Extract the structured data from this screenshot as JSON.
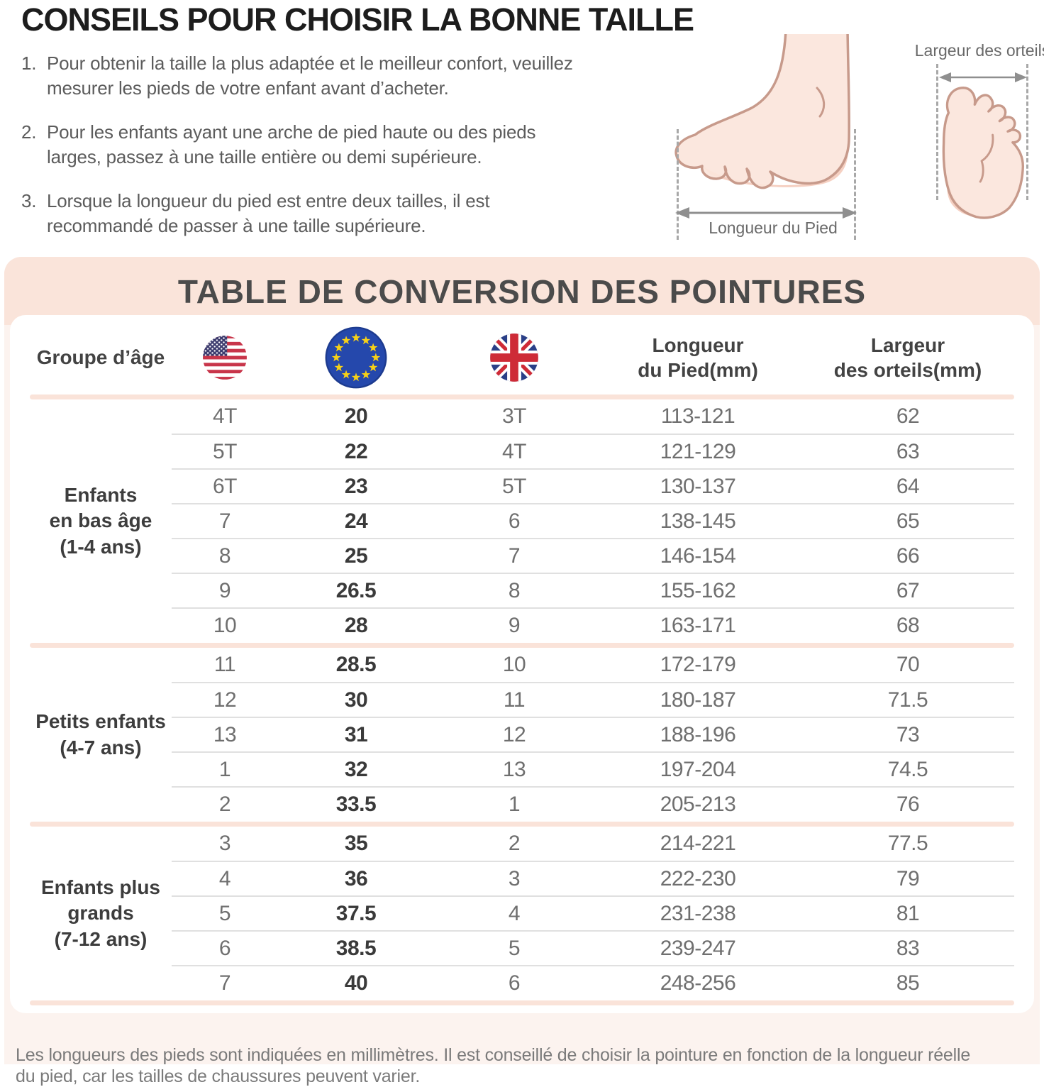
{
  "header": {
    "title": "CONSEILS POUR CHOISIR LA BONNE TAILLE",
    "tip_numbers": [
      "1.",
      "2.",
      "3."
    ],
    "tips": [
      "Pour obtenir la taille la plus adaptée et le meilleur confort, veuillez\nmesurer les pieds de votre enfant avant d’acheter.",
      "Pour les enfants ayant une arche de pied haute ou des pieds\nlarges, passez à une taille entière ou demi supérieure.",
      "Lorsque la longueur du pied est entre deux tailles, il est\nrecommandé de passer à une taille supérieure."
    ]
  },
  "diagram": {
    "foot_length_label": "Longueur du Pied",
    "toe_width_label": "Largeur des orteils"
  },
  "table": {
    "title": "TABLE DE CONVERSION DES POINTURES",
    "age_group_header": "Groupe d’âge",
    "flag_icons": [
      "us-flag",
      "eu-flag",
      "uk-flag"
    ],
    "foot_length_header": "Longueur\ndu Pied(mm)",
    "toe_width_header": "Largeur\ndes orteils(mm)",
    "groups": [
      {
        "label": "Enfants\nen bas âge\n(1-4 ans)",
        "rows": [
          {
            "us": "4T",
            "eu": "20",
            "uk": "3T",
            "length": "113-121",
            "width": "62"
          },
          {
            "us": "5T",
            "eu": "22",
            "uk": "4T",
            "length": "121-129",
            "width": "63"
          },
          {
            "us": "6T",
            "eu": "23",
            "uk": "5T",
            "length": "130-137",
            "width": "64"
          },
          {
            "us": "7",
            "eu": "24",
            "uk": "6",
            "length": "138-145",
            "width": "65"
          },
          {
            "us": "8",
            "eu": "25",
            "uk": "7",
            "length": "146-154",
            "width": "66"
          },
          {
            "us": "9",
            "eu": "26.5",
            "uk": "8",
            "length": "155-162",
            "width": "67"
          },
          {
            "us": "10",
            "eu": "28",
            "uk": "9",
            "length": "163-171",
            "width": "68"
          }
        ]
      },
      {
        "label": "Petits enfants\n(4-7 ans)",
        "rows": [
          {
            "us": "11",
            "eu": "28.5",
            "uk": "10",
            "length": "172-179",
            "width": "70"
          },
          {
            "us": "12",
            "eu": "30",
            "uk": "11",
            "length": "180-187",
            "width": "71.5"
          },
          {
            "us": "13",
            "eu": "31",
            "uk": "12",
            "length": "188-196",
            "width": "73"
          },
          {
            "us": "1",
            "eu": "32",
            "uk": "13",
            "length": "197-204",
            "width": "74.5"
          },
          {
            "us": "2",
            "eu": "33.5",
            "uk": "1",
            "length": "205-213",
            "width": "76"
          }
        ]
      },
      {
        "label": "Enfants plus\ngrands\n(7-12 ans)",
        "rows": [
          {
            "us": "3",
            "eu": "35",
            "uk": "2",
            "length": "214-221",
            "width": "77.5"
          },
          {
            "us": "4",
            "eu": "36",
            "uk": "3",
            "length": "222-230",
            "width": "79"
          },
          {
            "us": "5",
            "eu": "37.5",
            "uk": "4",
            "length": "231-238",
            "width": "81"
          },
          {
            "us": "6",
            "eu": "38.5",
            "uk": "5",
            "length": "239-247",
            "width": "83"
          },
          {
            "us": "7",
            "eu": "40",
            "uk": "6",
            "length": "248-256",
            "width": "85"
          }
        ]
      }
    ]
  },
  "footnote": "Les longueurs des pieds sont indiquées en millimètres. Il est conseillé de choisir la pointure en fonction de la longueur réelle\ndu pied, car les tailles de chaussures peuvent varier.",
  "colors": {
    "banner_pink": "#FAE4DA",
    "panel_pink": "#FCF3EF",
    "separator_pink": "#FAE3D9",
    "row_line_gray": "#E0E0E0",
    "text_dark": "#3D3D3D",
    "text_gray": "#6F6F6F",
    "skin_fill": "#FBE5DB",
    "skin_shade": "#F5D0C2",
    "skin_outline": "#C79A8B"
  }
}
